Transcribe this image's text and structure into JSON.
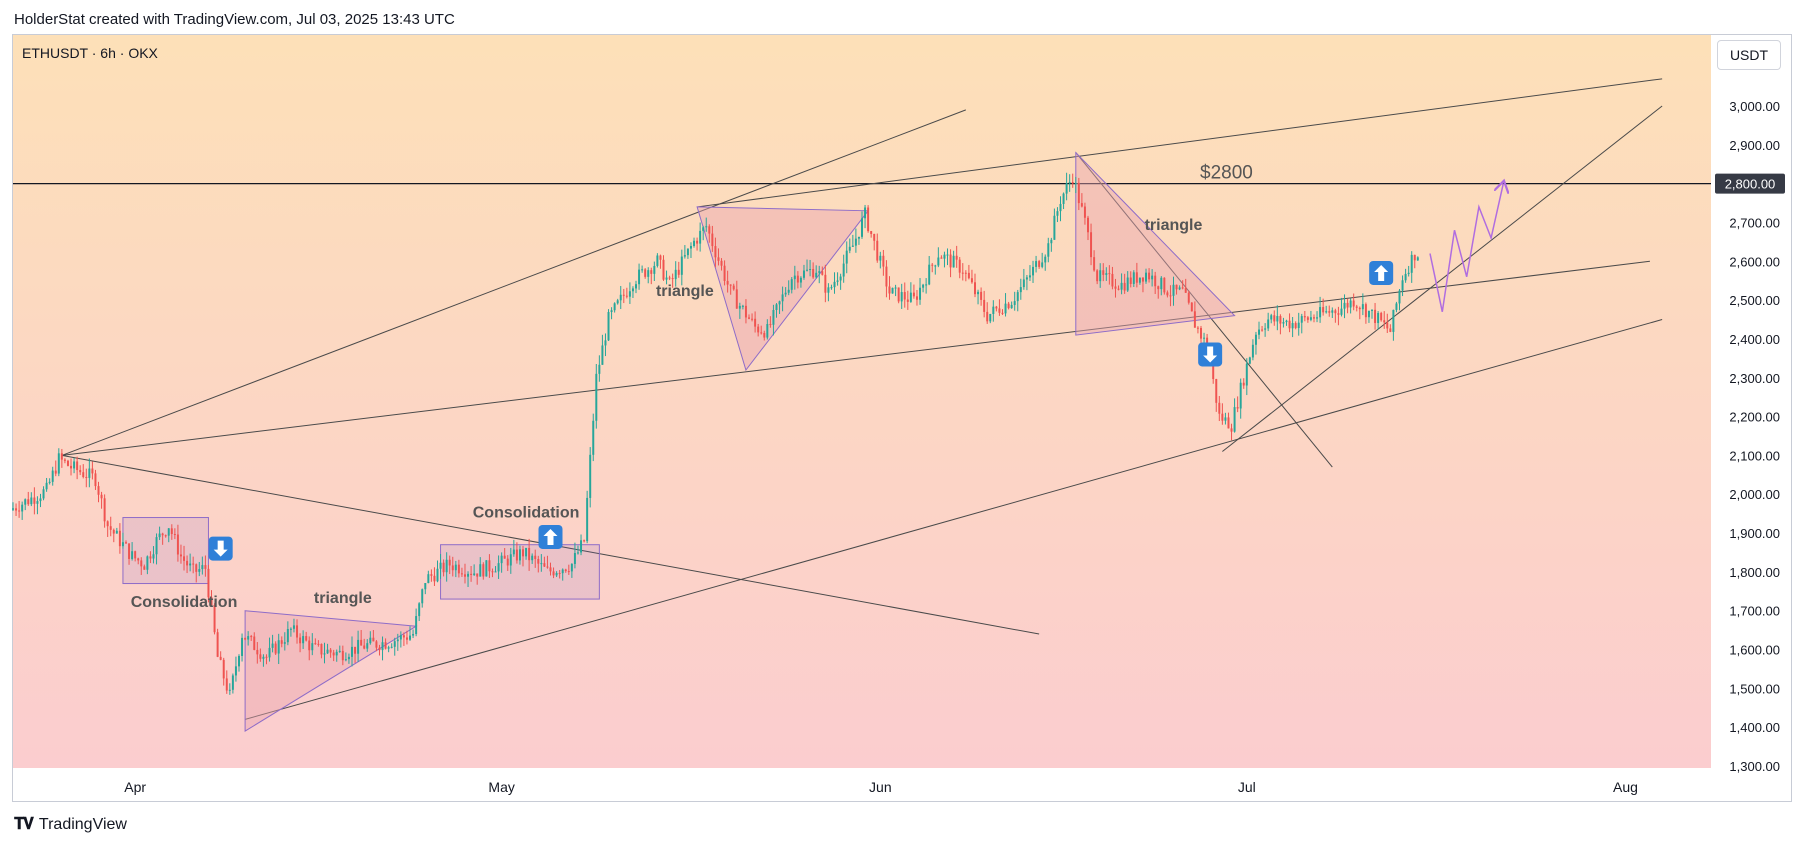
{
  "header": {
    "attribution": "HolderStat created with TradingView.com, Jul 03, 2025 13:43 UTC"
  },
  "footer": {
    "brand": "TradingView"
  },
  "currency_button": "USDT",
  "colors": {
    "bg_top": "#fde0b8",
    "bg_bottom": "#fbccd0",
    "up": "#26a69a",
    "down": "#ef5350",
    "pattern": "#8e6cc8",
    "pattern_fill": "#e8a3b0",
    "arrow_box": "#2f80d8",
    "line": "#4a4a4a",
    "projection": "#b06de0"
  },
  "chart_data": {
    "type": "candlestick",
    "symbol_label": "ETHUSDT · 6h · OKX",
    "ylim": [
      1300,
      3100
    ],
    "y_ticks": [
      1300,
      1400,
      1500,
      1600,
      1700,
      1800,
      1900,
      2000,
      2100,
      2200,
      2300,
      2400,
      2500,
      2600,
      2700,
      2800,
      2900,
      3000
    ],
    "y_tick_labels": [
      "1,300.00",
      "1,400.00",
      "1,500.00",
      "1,600.00",
      "1,700.00",
      "1,800.00",
      "1,900.00",
      "2,000.00",
      "2,100.00",
      "2,200.00",
      "2,300.00",
      "2,400.00",
      "2,500.00",
      "2,600.00",
      "2,700.00",
      "2,800.00",
      "2,900.00",
      "3,000.00"
    ],
    "x_range": [
      "2025-03-22",
      "2025-08-08"
    ],
    "x_ticks": [
      {
        "date": "2025-04-01",
        "label": "Apr"
      },
      {
        "date": "2025-05-01",
        "label": "May"
      },
      {
        "date": "2025-06-01",
        "label": "Jun"
      },
      {
        "date": "2025-07-01",
        "label": "Jul"
      },
      {
        "date": "2025-08-01",
        "label": "Aug"
      }
    ],
    "horizontal_level": {
      "value": 2800,
      "label": "$2800",
      "axis_label": "2,800.00"
    },
    "price_path": [
      [
        "2025-03-22",
        1960
      ],
      [
        "2025-03-25",
        2010
      ],
      [
        "2025-03-26",
        2090
      ],
      [
        "2025-03-27",
        2070
      ],
      [
        "2025-03-29",
        2040
      ],
      [
        "2025-03-30",
        1920
      ],
      [
        "2025-04-01",
        1840
      ],
      [
        "2025-04-02",
        1820
      ],
      [
        "2025-04-03",
        1880
      ],
      [
        "2025-04-04",
        1920
      ],
      [
        "2025-04-05",
        1840
      ],
      [
        "2025-04-06",
        1800
      ],
      [
        "2025-04-07",
        1810
      ],
      [
        "2025-04-08",
        1580
      ],
      [
        "2025-04-09",
        1480
      ],
      [
        "2025-04-10",
        1640
      ],
      [
        "2025-04-12",
        1580
      ],
      [
        "2025-04-14",
        1650
      ],
      [
        "2025-04-16",
        1600
      ],
      [
        "2025-04-18",
        1590
      ],
      [
        "2025-04-20",
        1610
      ],
      [
        "2025-04-22",
        1620
      ],
      [
        "2025-04-24",
        1640
      ],
      [
        "2025-04-25",
        1780
      ],
      [
        "2025-04-27",
        1820
      ],
      [
        "2025-04-29",
        1800
      ],
      [
        "2025-05-01",
        1820
      ],
      [
        "2025-05-03",
        1850
      ],
      [
        "2025-05-05",
        1800
      ],
      [
        "2025-05-07",
        1820
      ],
      [
        "2025-05-08",
        1880
      ],
      [
        "2025-05-09",
        2300
      ],
      [
        "2025-05-10",
        2450
      ],
      [
        "2025-05-12",
        2550
      ],
      [
        "2025-05-14",
        2600
      ],
      [
        "2025-05-15",
        2540
      ],
      [
        "2025-05-17",
        2650
      ],
      [
        "2025-05-18",
        2690
      ],
      [
        "2025-05-20",
        2520
      ],
      [
        "2025-05-22",
        2430
      ],
      [
        "2025-05-23",
        2420
      ],
      [
        "2025-05-25",
        2560
      ],
      [
        "2025-05-27",
        2580
      ],
      [
        "2025-05-28",
        2520
      ],
      [
        "2025-05-30",
        2640
      ],
      [
        "2025-05-31",
        2720
      ],
      [
        "2025-06-01",
        2620
      ],
      [
        "2025-06-02",
        2520
      ],
      [
        "2025-06-04",
        2500
      ],
      [
        "2025-06-06",
        2620
      ],
      [
        "2025-06-08",
        2580
      ],
      [
        "2025-06-10",
        2460
      ],
      [
        "2025-06-12",
        2500
      ],
      [
        "2025-06-13",
        2540
      ],
      [
        "2025-06-15",
        2640
      ],
      [
        "2025-06-16",
        2760
      ],
      [
        "2025-06-17",
        2820
      ],
      [
        "2025-06-18",
        2700
      ],
      [
        "2025-06-19",
        2560
      ],
      [
        "2025-06-21",
        2540
      ],
      [
        "2025-06-23",
        2570
      ],
      [
        "2025-06-25",
        2520
      ],
      [
        "2025-06-26",
        2520
      ],
      [
        "2025-06-27",
        2440
      ],
      [
        "2025-06-28",
        2380
      ],
      [
        "2025-06-29",
        2200
      ],
      [
        "2025-06-30",
        2180
      ],
      [
        "2025-07-01",
        2300
      ],
      [
        "2025-07-02",
        2420
      ],
      [
        "2025-07-03",
        2450
      ],
      [
        "2025-07-05",
        2440
      ],
      [
        "2025-07-07",
        2460
      ],
      [
        "2025-07-09",
        2480
      ],
      [
        "2025-07-10",
        2500
      ],
      [
        "2025-07-12",
        2450
      ],
      [
        "2025-07-13",
        2420
      ],
      [
        "2025-07-14",
        2560
      ],
      [
        "2025-07-15",
        2620
      ]
    ],
    "annotations": [
      {
        "text": "Consolidation",
        "date": "2025-04-05",
        "price": 1710
      },
      {
        "text": "triangle",
        "date": "2025-04-18",
        "price": 1720
      },
      {
        "text": "Consolidation",
        "date": "2025-05-03",
        "price": 1940
      },
      {
        "text": "triangle",
        "date": "2025-05-16",
        "price": 2510
      },
      {
        "text": "triangle",
        "date": "2025-06-25",
        "price": 2680
      }
    ],
    "arrows": [
      {
        "dir": "down",
        "date": "2025-04-08",
        "price": 1860
      },
      {
        "dir": "up",
        "date": "2025-05-05",
        "price": 1890
      },
      {
        "dir": "down",
        "date": "2025-06-28",
        "price": 2360
      },
      {
        "dir": "up",
        "date": "2025-07-12",
        "price": 2570
      }
    ],
    "rectangles": [
      {
        "d1": "2025-03-31",
        "p1": 1940,
        "d2": "2025-04-07",
        "p2": 1770
      },
      {
        "d1": "2025-04-26",
        "p1": 1870,
        "d2": "2025-05-09",
        "p2": 1730
      }
    ],
    "triangles": [
      [
        [
          "2025-04-10",
          1700
        ],
        [
          "2025-04-24",
          1660
        ],
        [
          "2025-04-10",
          1390
        ]
      ],
      [
        [
          "2025-05-17",
          2740
        ],
        [
          "2025-05-31",
          2730
        ],
        [
          "2025-05-21",
          2320
        ]
      ],
      [
        [
          "2025-06-17",
          2880
        ],
        [
          "2025-06-30",
          2460
        ],
        [
          "2025-06-17",
          2410
        ]
      ]
    ],
    "trendlines": [
      [
        [
          "2025-03-26",
          2100
        ],
        [
          "2025-06-08",
          2990
        ]
      ],
      [
        [
          "2025-05-17",
          2740
        ],
        [
          "2025-08-04",
          3070
        ]
      ],
      [
        [
          "2025-03-26",
          2100
        ],
        [
          "2025-08-03",
          2600
        ]
      ],
      [
        [
          "2025-03-26",
          2100
        ],
        [
          "2025-06-14",
          1640
        ]
      ],
      [
        [
          "2025-04-10",
          1420
        ],
        [
          "2025-08-04",
          2450
        ]
      ],
      [
        [
          "2025-06-17",
          2880
        ],
        [
          "2025-07-08",
          2070
        ]
      ],
      [
        [
          "2025-06-29",
          2110
        ],
        [
          "2025-08-04",
          3000
        ]
      ]
    ],
    "projection_path": [
      [
        "2025-07-16",
        2620
      ],
      [
        "2025-07-17",
        2470
      ],
      [
        "2025-07-18",
        2680
      ],
      [
        "2025-07-19",
        2560
      ],
      [
        "2025-07-20",
        2740
      ],
      [
        "2025-07-21",
        2660
      ],
      [
        "2025-07-22",
        2800
      ]
    ]
  }
}
